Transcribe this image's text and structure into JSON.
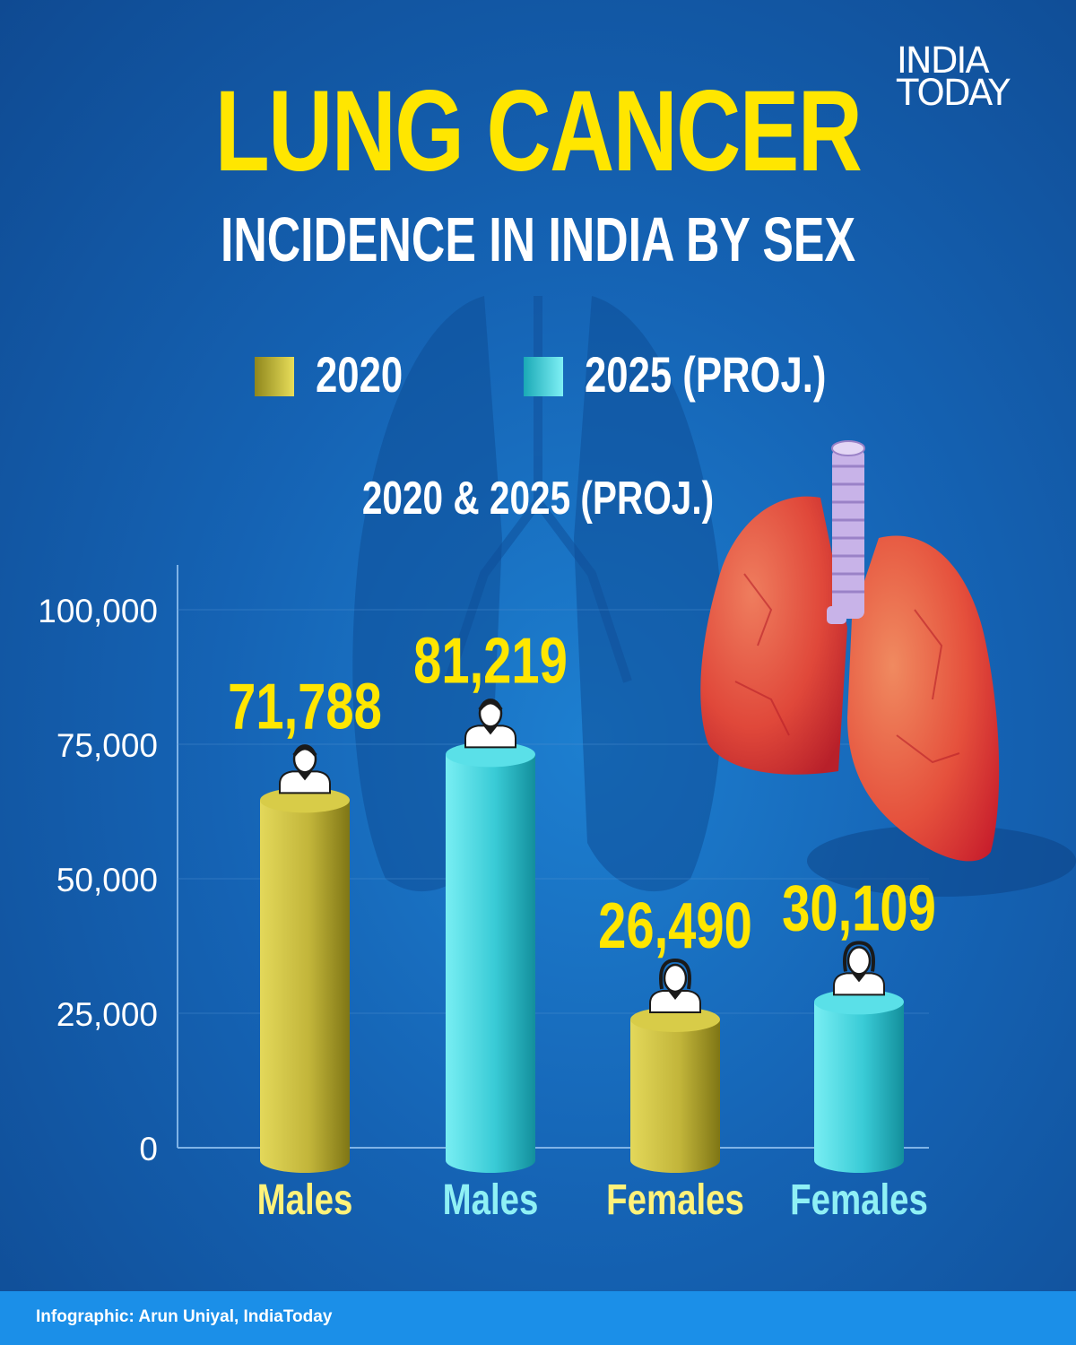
{
  "brand": {
    "line1": "INDIA",
    "line2": "TODAY"
  },
  "header": {
    "title": "LUNG CANCER",
    "subtitle": "INCIDENCE IN INDIA BY SEX"
  },
  "legend": [
    {
      "label": "2020",
      "color": "#c8bd3c"
    },
    {
      "label": "2025 (PROJ.)",
      "color": "#3dd3de"
    }
  ],
  "colors": {
    "series_2020": "#c8bd3c",
    "series_2025": "#3dd3de",
    "value_labels": "#ffe600",
    "category_2020": "#fff27a",
    "category_2025": "#8ff0f5",
    "axis": "#7fb3e6",
    "background": "#1563b4"
  },
  "chart_data": {
    "type": "bar",
    "title": "2020 & 2025 (PROJ.)",
    "categories": [
      "Males",
      "Males",
      "Females",
      "Females"
    ],
    "values": [
      71788,
      81219,
      26490,
      30109
    ],
    "value_labels": [
      "71,788",
      "81,219",
      "26,490",
      "30,109"
    ],
    "series_of_bar": [
      "2020",
      "2025 (PROJ.)",
      "2020",
      "2025 (PROJ.)"
    ],
    "sex_of_bar": [
      "male",
      "male",
      "female",
      "female"
    ],
    "yticks": [
      0,
      25000,
      50000,
      75000,
      100000
    ],
    "ytick_labels": [
      "0",
      "25,000",
      "50,000",
      "75,000",
      "100,000"
    ],
    "ylim": [
      0,
      100000
    ],
    "grid": true,
    "legend_position": "top"
  },
  "footer": {
    "credit": "Infographic: Arun Uniyal, IndiaToday"
  }
}
